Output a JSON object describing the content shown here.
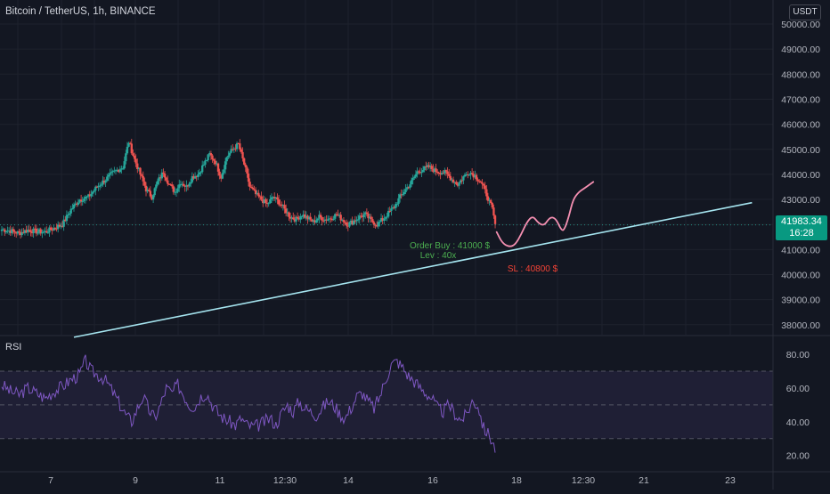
{
  "header": {
    "symbol_title": "Bitcoin / TetherUS, 1h, BINANCE",
    "unit": "USDT"
  },
  "price_tag": {
    "price": "41983.34",
    "countdown": "16:28"
  },
  "rsi_panel": {
    "label": "RSI"
  },
  "annotations": {
    "order_buy": "Order Buy : 41000 $",
    "leverage": "Lev : 40x",
    "stop_loss": "SL : 40800 $"
  },
  "colors": {
    "up": "#26a69a",
    "down": "#ef5350",
    "trendline": "#a5e4ef",
    "projection": "#f48fb1",
    "rsi": "#7e57c2",
    "order_text": "#4caf50",
    "sl_text": "#f44336",
    "price_tag": "#089981"
  },
  "chart_data": [
    {
      "type": "candlestick",
      "ylim": [
        37400,
        50400
      ],
      "y_ticks": [
        "50000.00",
        "49000.00",
        "48000.00",
        "47000.00",
        "46000.00",
        "45000.00",
        "44000.00",
        "43000.00",
        "42000.00",
        "41000.00",
        "40000.00",
        "39000.00",
        "38000.00"
      ],
      "x_ticks": [
        "7",
        "9",
        "11",
        "12:30",
        "14",
        "16",
        "18",
        "12:30",
        "21",
        "23"
      ],
      "close_anchors": [
        [
          0,
          41800
        ],
        [
          6,
          41750
        ],
        [
          12,
          41650
        ],
        [
          18,
          41780
        ],
        [
          24,
          41720
        ],
        [
          30,
          41700
        ],
        [
          36,
          41850
        ],
        [
          42,
          42000
        ],
        [
          48,
          42600
        ],
        [
          54,
          43000
        ],
        [
          60,
          43100
        ],
        [
          66,
          43500
        ],
        [
          72,
          43800
        ],
        [
          78,
          44100
        ],
        [
          84,
          44300
        ],
        [
          88,
          45300
        ],
        [
          92,
          44600
        ],
        [
          96,
          44000
        ],
        [
          100,
          43400
        ],
        [
          104,
          43100
        ],
        [
          108,
          43700
        ],
        [
          112,
          44100
        ],
        [
          116,
          43600
        ],
        [
          120,
          43300
        ],
        [
          124,
          43700
        ],
        [
          128,
          43500
        ],
        [
          132,
          43900
        ],
        [
          136,
          44000
        ],
        [
          140,
          44400
        ],
        [
          144,
          44800
        ],
        [
          148,
          44500
        ],
        [
          152,
          43900
        ],
        [
          156,
          44700
        ],
        [
          160,
          45000
        ],
        [
          164,
          45200
        ],
        [
          168,
          44400
        ],
        [
          172,
          43500
        ],
        [
          176,
          43200
        ],
        [
          180,
          43000
        ],
        [
          184,
          42800
        ],
        [
          188,
          43100
        ],
        [
          192,
          42900
        ],
        [
          196,
          42600
        ],
        [
          200,
          42300
        ],
        [
          204,
          42200
        ],
        [
          208,
          42400
        ],
        [
          212,
          42250
        ],
        [
          216,
          42100
        ],
        [
          220,
          42300
        ],
        [
          224,
          42200
        ],
        [
          228,
          42250
        ],
        [
          232,
          42400
        ],
        [
          236,
          42200
        ],
        [
          240,
          42000
        ],
        [
          244,
          42150
        ],
        [
          248,
          42300
        ],
        [
          252,
          42400
        ],
        [
          256,
          42150
        ],
        [
          260,
          42000
        ],
        [
          264,
          42200
        ],
        [
          268,
          42450
        ],
        [
          272,
          42700
        ],
        [
          276,
          43100
        ],
        [
          280,
          43400
        ],
        [
          284,
          43700
        ],
        [
          288,
          44100
        ],
        [
          292,
          44200
        ],
        [
          296,
          44300
        ],
        [
          300,
          44150
        ],
        [
          304,
          44100
        ],
        [
          308,
          44050
        ],
        [
          312,
          43800
        ],
        [
          316,
          43600
        ],
        [
          320,
          43900
        ],
        [
          324,
          44100
        ],
        [
          328,
          43950
        ],
        [
          332,
          43700
        ],
        [
          336,
          43200
        ],
        [
          340,
          42600
        ],
        [
          342,
          42000
        ]
      ],
      "projection_path": [
        [
          343,
          41700
        ],
        [
          347,
          41250
        ],
        [
          352,
          41100
        ],
        [
          356,
          41200
        ],
        [
          360,
          41600
        ],
        [
          364,
          42100
        ],
        [
          368,
          42350
        ],
        [
          372,
          42050
        ],
        [
          376,
          41950
        ],
        [
          380,
          42300
        ],
        [
          384,
          42250
        ],
        [
          388,
          41750
        ],
        [
          390,
          41800
        ],
        [
          393,
          42300
        ],
        [
          396,
          43000
        ],
        [
          400,
          43300
        ],
        [
          404,
          43450
        ],
        [
          410,
          43700
        ]
      ],
      "trendline": {
        "from": [
          50,
          37500
        ],
        "to": [
          520,
          42870
        ]
      },
      "last_price": 41983.34
    },
    {
      "type": "line",
      "name": "RSI",
      "ylim": [
        15,
        86
      ],
      "y_ticks": [
        "80.00",
        "60.00",
        "40.00",
        "20.00"
      ],
      "band": [
        30,
        70
      ],
      "midline": 50,
      "anchors": [
        [
          0,
          62
        ],
        [
          6,
          58
        ],
        [
          12,
          56
        ],
        [
          18,
          60
        ],
        [
          24,
          57
        ],
        [
          30,
          54
        ],
        [
          36,
          58
        ],
        [
          42,
          61
        ],
        [
          48,
          65
        ],
        [
          54,
          68
        ],
        [
          58,
          76
        ],
        [
          62,
          70
        ],
        [
          66,
          68
        ],
        [
          70,
          66
        ],
        [
          74,
          62
        ],
        [
          78,
          56
        ],
        [
          82,
          50
        ],
        [
          86,
          44
        ],
        [
          90,
          40
        ],
        [
          94,
          48
        ],
        [
          98,
          55
        ],
        [
          102,
          47
        ],
        [
          106,
          42
        ],
        [
          110,
          50
        ],
        [
          114,
          60
        ],
        [
          118,
          57
        ],
        [
          122,
          62
        ],
        [
          126,
          56
        ],
        [
          130,
          50
        ],
        [
          134,
          49
        ],
        [
          138,
          55
        ],
        [
          142,
          57
        ],
        [
          146,
          50
        ],
        [
          150,
          45
        ],
        [
          154,
          42
        ],
        [
          158,
          40
        ],
        [
          162,
          38
        ],
        [
          166,
          42
        ],
        [
          170,
          38
        ],
        [
          174,
          37
        ],
        [
          178,
          38
        ],
        [
          182,
          40
        ],
        [
          186,
          42
        ],
        [
          190,
          38
        ],
        [
          194,
          45
        ],
        [
          198,
          50
        ],
        [
          202,
          46
        ],
        [
          206,
          52
        ],
        [
          210,
          48
        ],
        [
          214,
          46
        ],
        [
          218,
          44
        ],
        [
          222,
          48
        ],
        [
          226,
          52
        ],
        [
          230,
          50
        ],
        [
          234,
          45
        ],
        [
          238,
          42
        ],
        [
          242,
          48
        ],
        [
          246,
          55
        ],
        [
          250,
          57
        ],
        [
          254,
          52
        ],
        [
          258,
          48
        ],
        [
          262,
          55
        ],
        [
          266,
          65
        ],
        [
          270,
          74
        ],
        [
          274,
          76
        ],
        [
          278,
          72
        ],
        [
          282,
          67
        ],
        [
          286,
          64
        ],
        [
          290,
          60
        ],
        [
          294,
          57
        ],
        [
          298,
          54
        ],
        [
          302,
          48
        ],
        [
          306,
          46
        ],
        [
          310,
          50
        ],
        [
          314,
          45
        ],
        [
          318,
          41
        ],
        [
          322,
          44
        ],
        [
          326,
          52
        ],
        [
          330,
          50
        ],
        [
          334,
          36
        ],
        [
          338,
          32
        ],
        [
          342,
          24
        ]
      ]
    }
  ]
}
